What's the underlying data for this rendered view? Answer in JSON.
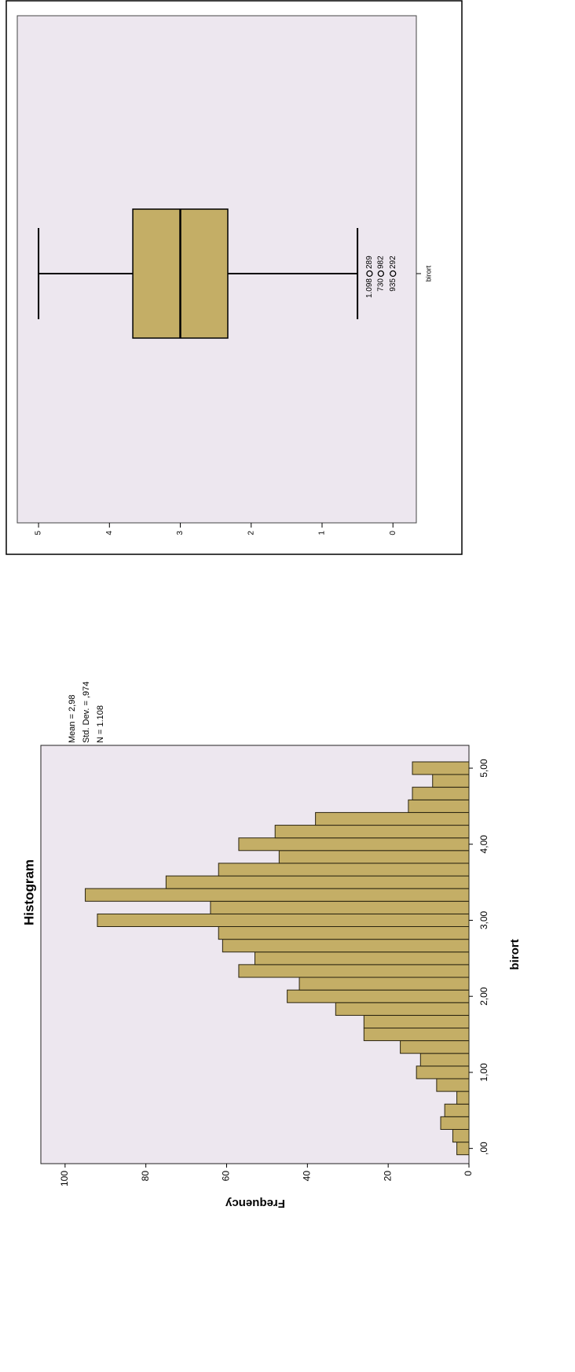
{
  "chart_data": [
    {
      "type": "histogram",
      "title": "Histogram",
      "xlabel": "birort",
      "ylabel": "Frequency",
      "annotations": [
        "Mean = 2,98",
        "Std. Dev. = ,974",
        "N = 1.108"
      ],
      "bins": [
        -0.083,
        0.083,
        0.25,
        0.417,
        0.583,
        0.75,
        0.917,
        1.083,
        1.25,
        1.417,
        1.583,
        1.75,
        1.917,
        2.083,
        2.25,
        2.417,
        2.583,
        2.75,
        2.917,
        3.083,
        3.25,
        3.417,
        3.583,
        3.75,
        3.917,
        4.083,
        4.25,
        4.417,
        4.583,
        4.75,
        4.917,
        5.083
      ],
      "counts": [
        3,
        4,
        7,
        6,
        3,
        8,
        13,
        12,
        17,
        26,
        26,
        33,
        45,
        42,
        57,
        53,
        61,
        62,
        92,
        64,
        95,
        75,
        62,
        47,
        57,
        48,
        38,
        15,
        14,
        9,
        14
      ],
      "color": "#c4ae66",
      "xlim": [
        -0.2,
        5.3
      ],
      "xticks": [
        {
          "value": 0,
          "label": ",00"
        },
        {
          "value": 1,
          "label": "1,00"
        },
        {
          "value": 2,
          "label": "2,00"
        },
        {
          "value": 3,
          "label": "3,00"
        },
        {
          "value": 4,
          "label": "4,00"
        },
        {
          "value": 5,
          "label": "5,00"
        }
      ],
      "ylim": [
        0,
        106
      ],
      "yticks": [
        0,
        20,
        40,
        60,
        80,
        100
      ]
    },
    {
      "type": "box",
      "categories": [
        "birort"
      ],
      "color": "#c4ae66",
      "whisker_low": 0.5,
      "q1": 2.33,
      "median": 3,
      "q3": 3.67,
      "whisker_high": 5,
      "outliers": [
        {
          "value": 0.33,
          "labels": [
            "1.098",
            "289"
          ]
        },
        {
          "value": 0.17,
          "labels": [
            "730",
            "982"
          ]
        },
        {
          "value": 0,
          "labels": [
            "935",
            "292"
          ]
        }
      ],
      "ylim": [
        -0.33,
        5.3
      ],
      "yticks": [
        0,
        1,
        2,
        3,
        4,
        5
      ]
    }
  ]
}
